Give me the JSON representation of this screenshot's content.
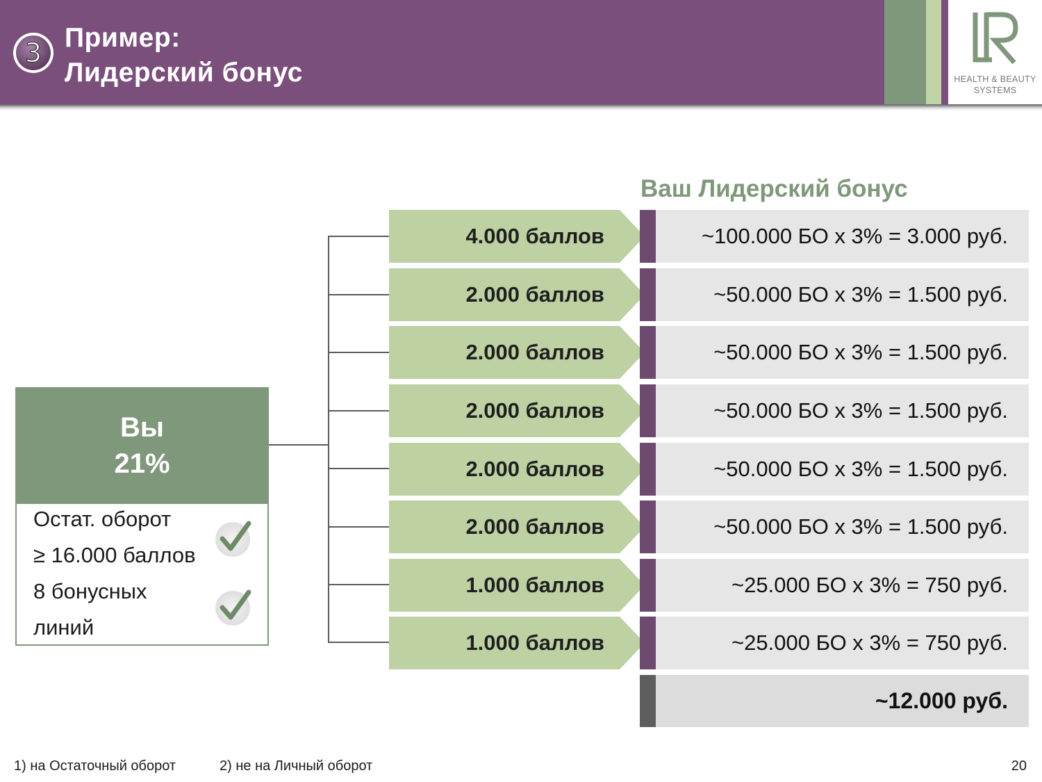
{
  "header": {
    "step_number": "3",
    "title_line1": "Пример:",
    "title_line2": "Лидерский бонус",
    "brand_color": "#7b4f7c"
  },
  "logo": {
    "line1": "HEALTH & BEAUTY",
    "line2": "SYSTEMS",
    "mark": "LR"
  },
  "you": {
    "name": "Вы",
    "percent": "21%",
    "conditions": [
      "Остат. оборот",
      "≥ 16.000 баллов",
      "8 бонусных",
      "линий"
    ],
    "checks": [
      "check-icon",
      "check-icon"
    ]
  },
  "bonus_heading": "Ваш Лидерский бонус",
  "rows": [
    {
      "points": "4.000 баллов",
      "calc": "~100.000 БО х 3% = 3.000 руб."
    },
    {
      "points": "2.000 баллов",
      "calc": "~50.000 БО х 3% = 1.500 руб."
    },
    {
      "points": "2.000 баллов",
      "calc": "~50.000 БО х 3% = 1.500 руб."
    },
    {
      "points": "2.000 баллов",
      "calc": "~50.000 БО х 3% = 1.500 руб."
    },
    {
      "points": "2.000 баллов",
      "calc": "~50.000 БО х 3% = 1.500 руб."
    },
    {
      "points": "2.000 баллов",
      "calc": "~50.000 БО х 3% = 1.500 руб."
    },
    {
      "points": "1.000 баллов",
      "calc": "~25.000 БО х 3% = 750 руб."
    },
    {
      "points": "1.000 баллов",
      "calc": "~25.000 БО х 3% = 750 руб."
    }
  ],
  "total": "~12.000 руб.",
  "footer": {
    "note1": "1)  на Остаточный оборот",
    "note2": "2) не на Личный оборот",
    "page": "20"
  },
  "colors": {
    "green_dark": "#7f977a",
    "green_light": "#bdd1a3",
    "purple": "#6e4a70",
    "grey_cell": "#e6e6e6"
  }
}
